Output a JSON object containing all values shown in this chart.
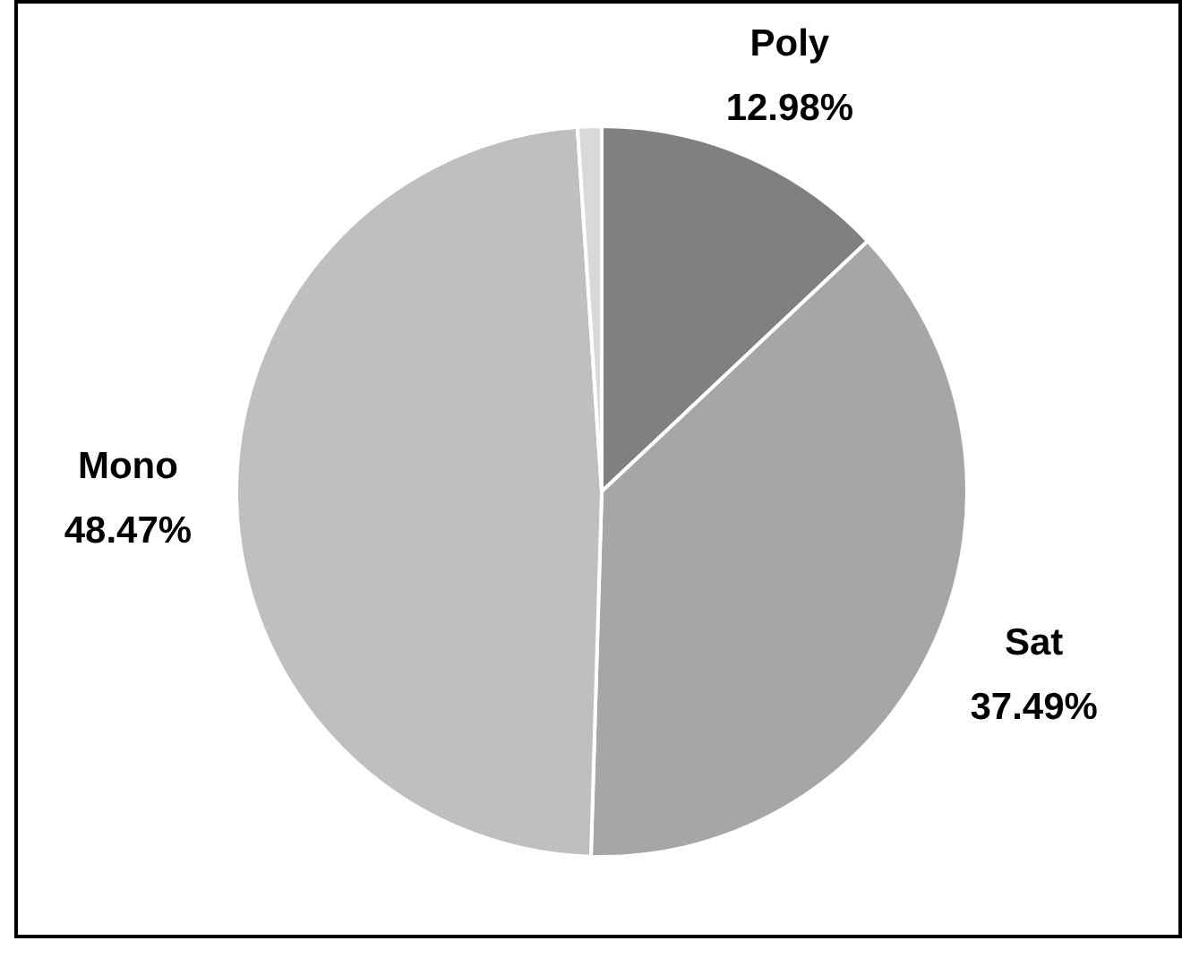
{
  "chart_data": {
    "type": "pie",
    "categories": [
      "Poly",
      "Sat",
      "Mono",
      null
    ],
    "values": [
      12.98,
      37.49,
      48.47,
      1.06
    ],
    "colors": [
      "#808080",
      "#a6a6a6",
      "#bfbfbf",
      "#d9d9d9"
    ],
    "value_labels": [
      "12.98%",
      "37.49%",
      "48.47%",
      null
    ],
    "legend": false
  }
}
